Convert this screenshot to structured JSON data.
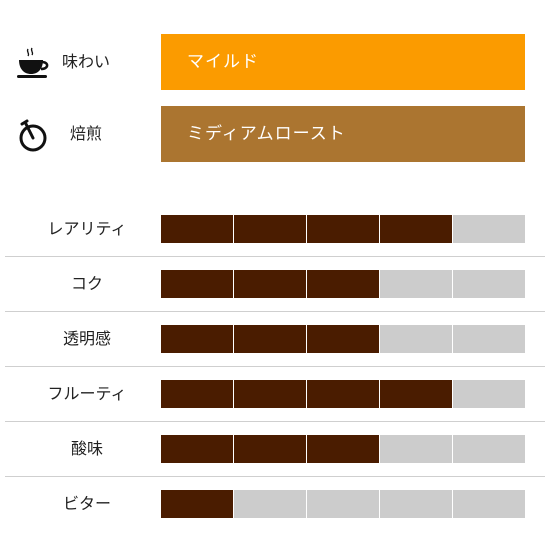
{
  "attributes": [
    {
      "icon": "coffee-cup-icon",
      "label": "味わい",
      "value": "マイルド",
      "color": "#fb9b00"
    },
    {
      "icon": "timer-icon",
      "label": "焙煎",
      "value": "ミディアムロースト",
      "color": "#ab7530"
    }
  ],
  "ratings": {
    "max": 5,
    "filled_color": "#4a1c00",
    "empty_color": "#cccccc",
    "items": [
      {
        "label": "レアリティ",
        "level": 4
      },
      {
        "label": "コク",
        "level": 3
      },
      {
        "label": "透明感",
        "level": 3
      },
      {
        "label": "フルーティ",
        "level": 4
      },
      {
        "label": "酸味",
        "level": 3
      },
      {
        "label": "ビター",
        "level": 1
      }
    ]
  }
}
